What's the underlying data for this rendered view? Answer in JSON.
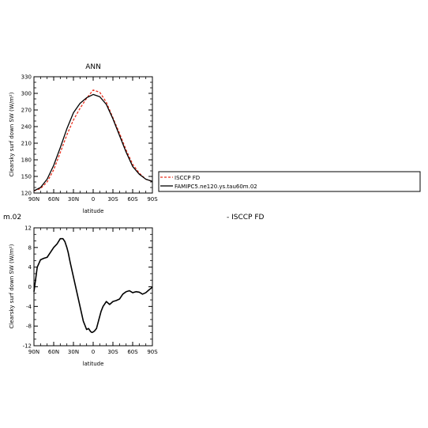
{
  "chart_data": [
    {
      "type": "line",
      "title": "ANN",
      "xlabel": "latitude",
      "ylabel": "Clearsky surf down SW (W/m²)",
      "xlim": [
        90,
        -90
      ],
      "ylim": [
        120,
        330
      ],
      "xticks": [
        90,
        60,
        30,
        0,
        -30,
        -60,
        -90
      ],
      "xtick_labels": [
        "90N",
        "60N",
        "30N",
        "0",
        "30S",
        "60S",
        "90S"
      ],
      "yticks": [
        120,
        150,
        180,
        210,
        240,
        270,
        300,
        330
      ],
      "ytick_labels": [
        "120",
        "150",
        "180",
        "210",
        "240",
        "270",
        "300",
        "330"
      ],
      "grid": false,
      "legend": "right",
      "series": [
        {
          "name": "ISCCP FD",
          "color": "#e8301e",
          "dash": "dashed",
          "x": [
            90,
            80,
            70,
            60,
            50,
            40,
            30,
            20,
            10,
            0,
            -10,
            -20,
            -30,
            -40,
            -50,
            -60,
            -70,
            -80,
            -90
          ],
          "y": [
            124,
            128,
            140,
            162,
            193,
            225,
            252,
            273,
            291,
            306,
            302,
            284,
            256,
            228,
            198,
            172,
            156,
            145,
            141
          ]
        },
        {
          "name": "FAMIPC5.ne120.ys.tau60m.02",
          "color": "#000000",
          "dash": "solid",
          "x": [
            90,
            80,
            70,
            60,
            50,
            40,
            30,
            20,
            10,
            0,
            -10,
            -20,
            -30,
            -40,
            -50,
            -60,
            -70,
            -80,
            -90
          ],
          "y": [
            124,
            130,
            145,
            170,
            202,
            236,
            265,
            282,
            292,
            298,
            294,
            280,
            254,
            224,
            194,
            168,
            154,
            145,
            141
          ]
        }
      ]
    },
    {
      "type": "line",
      "title": "m.02",
      "subtitle": "- ISCCP FD",
      "xlabel": "latitude",
      "ylabel": "Clearsky surf down SW (W/m²)",
      "xlim": [
        90,
        -90
      ],
      "ylim": [
        -12,
        12
      ],
      "xticks": [
        90,
        60,
        30,
        0,
        -30,
        -60,
        -90
      ],
      "xtick_labels": [
        "90N",
        "60N",
        "30N",
        "0",
        "30S",
        "60S",
        "90S"
      ],
      "yticks": [
        -12,
        -8,
        -4,
        0,
        4,
        8,
        12
      ],
      "ytick_labels": [
        "-12",
        "-8",
        "-4",
        "0",
        "4",
        "8",
        "12"
      ],
      "grid": false,
      "series": [
        {
          "color": "#000000",
          "x": [
            90,
            88,
            85,
            80,
            75,
            70,
            65,
            60,
            55,
            50,
            46,
            43,
            40,
            38,
            35,
            30,
            25,
            20,
            15,
            10,
            7,
            4,
            2,
            0,
            -2,
            -5,
            -8,
            -12,
            -15,
            -20,
            -25,
            -30,
            -35,
            -40,
            -45,
            -50,
            -55,
            -60,
            -65,
            -70,
            -75,
            -80,
            -85,
            -88,
            -90
          ],
          "y": [
            -1,
            1,
            4,
            5.5,
            5.8,
            6,
            7,
            8,
            8.7,
            9.8,
            9.8,
            9.2,
            8,
            7,
            5,
            2,
            -1,
            -4,
            -7,
            -8.7,
            -8.5,
            -9.1,
            -9.3,
            -9.2,
            -9,
            -8.5,
            -7,
            -5,
            -4,
            -3,
            -3.6,
            -3,
            -2.8,
            -2.5,
            -1.5,
            -1,
            -0.8,
            -1.2,
            -1,
            -1.1,
            -1.5,
            -1.2,
            -0.6,
            -0.3,
            0
          ]
        }
      ]
    }
  ]
}
